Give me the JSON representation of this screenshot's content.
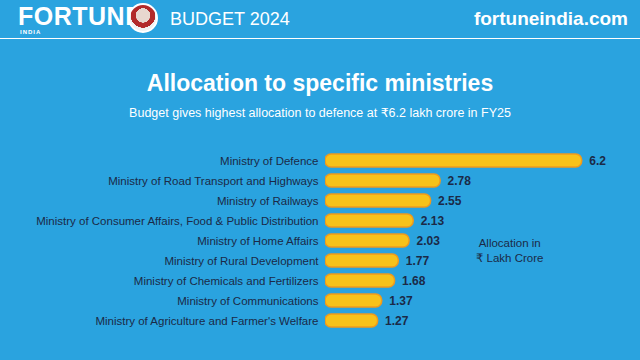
{
  "header": {
    "logo": "FORTUNE",
    "logo_sub": "INDIA",
    "section": "BUDGET 2024",
    "site": "fortuneindia.com"
  },
  "chart_data": {
    "type": "bar",
    "orientation": "horizontal",
    "title": "Allocation to specific ministries",
    "subtitle": "Budget gives highest allocation to defence at ₹6.2 lakh crore in FY25",
    "annotation": [
      "Allocation in",
      "₹ Lakh Crore"
    ],
    "categories": [
      "Ministry of Defence",
      "Ministry of Road Transport and Highways",
      "Ministry of Railways",
      "Ministry of Consumer Affairs, Food & Public Distribution",
      "Ministry of Home Affairs",
      "Ministry of Rural Development",
      "Ministry of Chemicals and Fertilizers",
      "Ministry of Communications",
      "Ministry of Agriculture and Farmer's Welfare"
    ],
    "values": [
      6.2,
      2.78,
      2.55,
      2.13,
      2.03,
      1.77,
      1.68,
      1.37,
      1.27
    ],
    "color": "#f7c21a",
    "xlim": [
      0,
      6.4
    ],
    "data_labels": true,
    "tick_labels": "y",
    "grid": false
  }
}
